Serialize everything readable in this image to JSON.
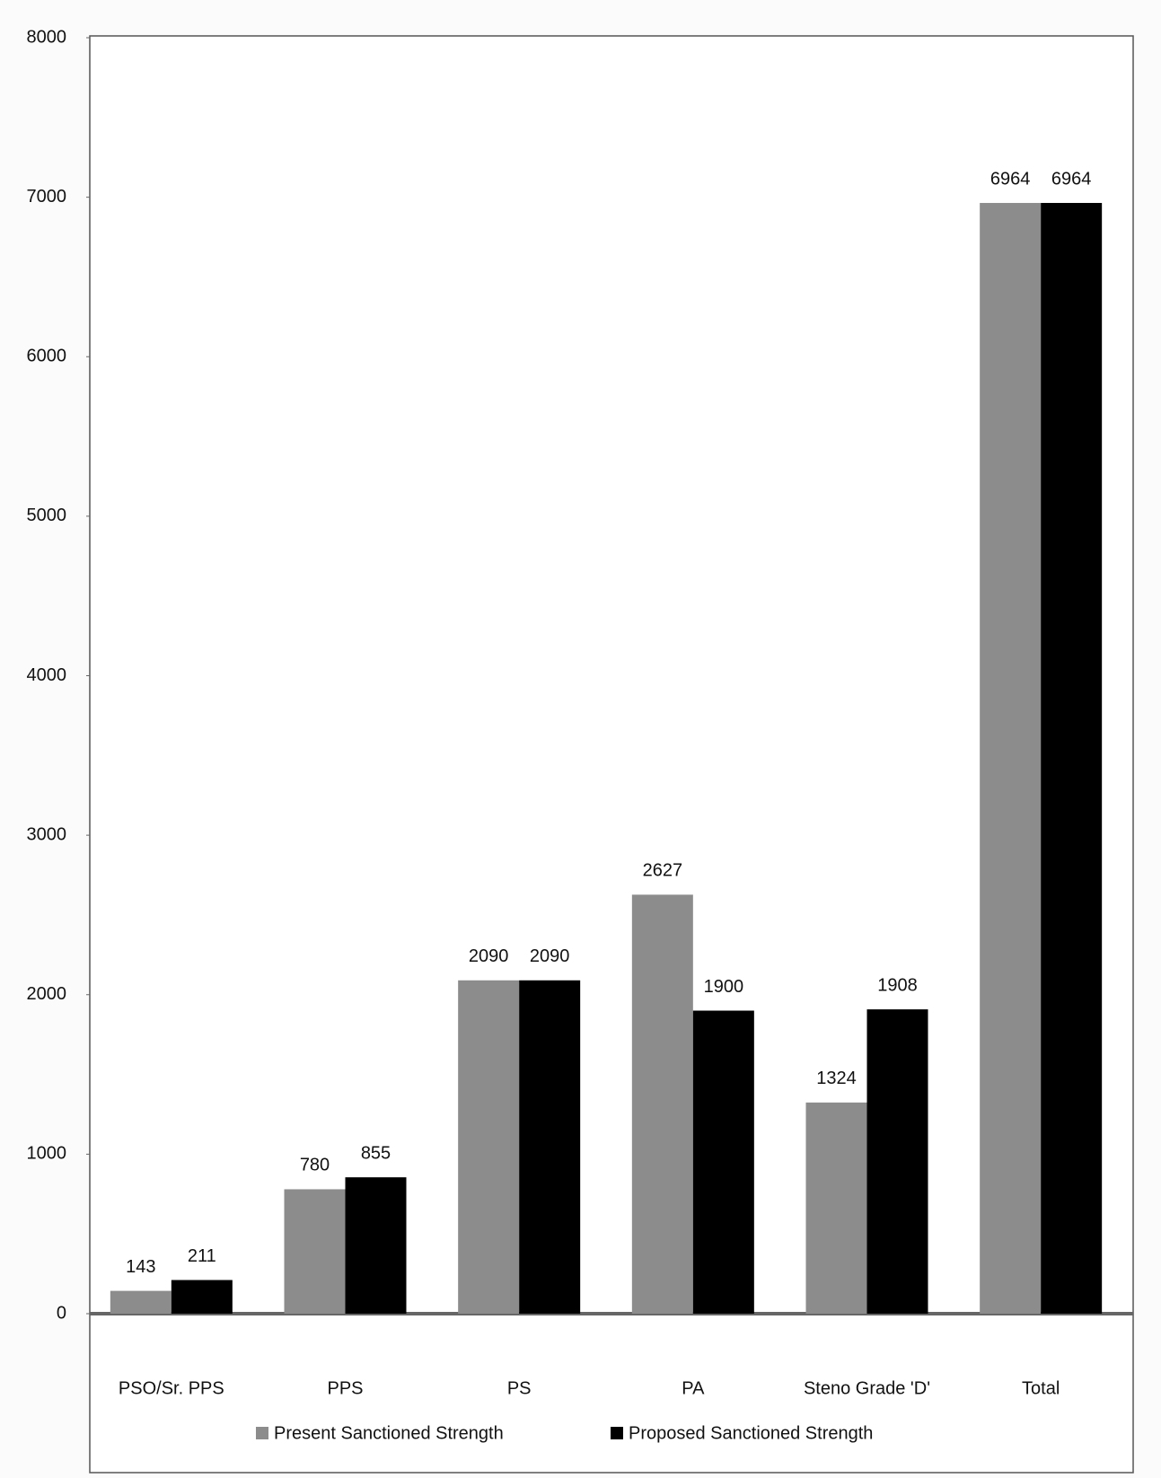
{
  "chart_data": {
    "type": "bar",
    "categories": [
      "PSO/Sr. PPS",
      "PPS",
      "PS",
      "PA",
      "Steno Grade 'D'",
      "Total"
    ],
    "series": [
      {
        "name": "Present Sanctioned Strength",
        "color": "#8c8c8c",
        "values": [
          143,
          780,
          2090,
          2627,
          1324,
          6964
        ]
      },
      {
        "name": "Proposed Sanctioned Strength",
        "color": "#000000",
        "values": [
          211,
          855,
          2090,
          1900,
          1908,
          6964
        ]
      }
    ],
    "ylim": [
      0,
      8000
    ],
    "yticks": [
      0,
      1000,
      2000,
      3000,
      4000,
      5000,
      6000,
      7000,
      8000
    ],
    "grid": false,
    "legend": "bottom"
  }
}
